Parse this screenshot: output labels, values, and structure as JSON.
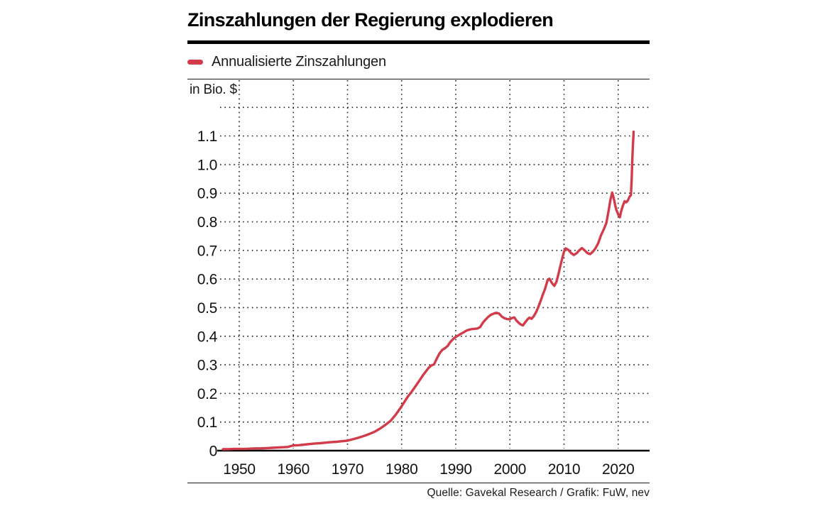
{
  "header": {
    "title": "Zinszahlungen der Regierung explodieren"
  },
  "legend": {
    "label": "Annualisierte Zinszahlungen",
    "color": "#d23b49"
  },
  "footer": {
    "source": "Quelle: Gavekal Research / Grafik: FuW, nev"
  },
  "chart_data": {
    "type": "line",
    "title": "Zinszahlungen der Regierung explodieren",
    "unit_label": "in Bio. $",
    "xlabel": "",
    "ylabel": "in Bio. $",
    "x_range": [
      1946.2,
      2025.8
    ],
    "y_range": [
      0,
      1.3
    ],
    "x_ticks": [
      1950,
      1960,
      1970,
      1980,
      1990,
      2000,
      2010,
      2020
    ],
    "y_tick_values": [
      0,
      0.1,
      0.2,
      0.3,
      0.4,
      0.5,
      0.6,
      0.7,
      0.8,
      0.9,
      1.0,
      1.1
    ],
    "y_tick_labels": [
      "0",
      "0.1",
      "0.2",
      "0.3",
      "0.4",
      "0.5",
      "0.6",
      "0.7",
      "0.8",
      "0.9",
      "1.0",
      "1.1"
    ],
    "x_gridlines": [
      1950,
      1960,
      1970,
      1980,
      1990,
      2000,
      2010,
      2020
    ],
    "y_gridlines": [
      0.1,
      0.2,
      0.3,
      0.4,
      0.5,
      0.6,
      0.7,
      0.8,
      0.9,
      1.0,
      1.1,
      1.2
    ],
    "grid": "dotted",
    "legend_position": "top-left",
    "line_color": "#d23b49",
    "source": "Quelle: Gavekal Research / Grafik: FuW, nev",
    "series": [
      {
        "name": "Annualisierte Zinszahlungen",
        "color": "#d23b49",
        "points": [
          [
            1947,
            0.005
          ],
          [
            1948,
            0.005
          ],
          [
            1949,
            0.006
          ],
          [
            1950,
            0.006
          ],
          [
            1951,
            0.006
          ],
          [
            1952,
            0.007
          ],
          [
            1953,
            0.008
          ],
          [
            1954,
            0.008
          ],
          [
            1955,
            0.009
          ],
          [
            1956,
            0.01
          ],
          [
            1957,
            0.011
          ],
          [
            1958,
            0.012
          ],
          [
            1959,
            0.013
          ],
          [
            1959.5,
            0.016
          ],
          [
            1960,
            0.018
          ],
          [
            1961,
            0.019
          ],
          [
            1962,
            0.021
          ],
          [
            1963,
            0.023
          ],
          [
            1964,
            0.025
          ],
          [
            1965,
            0.026
          ],
          [
            1966,
            0.028
          ],
          [
            1967,
            0.03
          ],
          [
            1968,
            0.031
          ],
          [
            1969,
            0.033
          ],
          [
            1970,
            0.035
          ],
          [
            1971,
            0.04
          ],
          [
            1972,
            0.045
          ],
          [
            1973,
            0.051
          ],
          [
            1974,
            0.058
          ],
          [
            1975,
            0.066
          ],
          [
            1976,
            0.077
          ],
          [
            1977,
            0.09
          ],
          [
            1978,
            0.105
          ],
          [
            1979,
            0.128
          ],
          [
            1980,
            0.155
          ],
          [
            1981,
            0.185
          ],
          [
            1982,
            0.21
          ],
          [
            1983,
            0.237
          ],
          [
            1984,
            0.265
          ],
          [
            1985,
            0.29
          ],
          [
            1985.5,
            0.298
          ],
          [
            1986,
            0.302
          ],
          [
            1986.5,
            0.322
          ],
          [
            1987,
            0.34
          ],
          [
            1987.5,
            0.352
          ],
          [
            1988,
            0.358
          ],
          [
            1988.5,
            0.366
          ],
          [
            1989,
            0.38
          ],
          [
            1989.5,
            0.39
          ],
          [
            1990,
            0.398
          ],
          [
            1990.5,
            0.403
          ],
          [
            1991,
            0.409
          ],
          [
            1991.5,
            0.414
          ],
          [
            1992,
            0.42
          ],
          [
            1992.5,
            0.423
          ],
          [
            1993,
            0.425
          ],
          [
            1993.5,
            0.426
          ],
          [
            1994,
            0.427
          ],
          [
            1994.5,
            0.432
          ],
          [
            1995,
            0.447
          ],
          [
            1995.5,
            0.458
          ],
          [
            1996,
            0.468
          ],
          [
            1996.5,
            0.475
          ],
          [
            1997,
            0.479
          ],
          [
            1997.5,
            0.482
          ],
          [
            1998,
            0.479
          ],
          [
            1998.5,
            0.469
          ],
          [
            1999,
            0.463
          ],
          [
            1999.5,
            0.46
          ],
          [
            2000,
            0.459
          ],
          [
            2000.3,
            0.463
          ],
          [
            2000.8,
            0.466
          ],
          [
            2001.2,
            0.455
          ],
          [
            2001.6,
            0.447
          ],
          [
            2002,
            0.441
          ],
          [
            2002.4,
            0.438
          ],
          [
            2002.8,
            0.448
          ],
          [
            2003.2,
            0.458
          ],
          [
            2003.6,
            0.465
          ],
          [
            2004,
            0.461
          ],
          [
            2004.4,
            0.47
          ],
          [
            2004.8,
            0.483
          ],
          [
            2005.2,
            0.5
          ],
          [
            2005.6,
            0.52
          ],
          [
            2006,
            0.541
          ],
          [
            2006.5,
            0.566
          ],
          [
            2007,
            0.598
          ],
          [
            2007.3,
            0.601
          ],
          [
            2007.8,
            0.585
          ],
          [
            2008.2,
            0.576
          ],
          [
            2008.6,
            0.59
          ],
          [
            2009,
            0.62
          ],
          [
            2009.5,
            0.66
          ],
          [
            2010,
            0.696
          ],
          [
            2010.3,
            0.707
          ],
          [
            2010.8,
            0.702
          ],
          [
            2011.3,
            0.691
          ],
          [
            2011.8,
            0.684
          ],
          [
            2012.3,
            0.69
          ],
          [
            2012.8,
            0.7
          ],
          [
            2013.3,
            0.708
          ],
          [
            2013.8,
            0.7
          ],
          [
            2014.3,
            0.691
          ],
          [
            2014.8,
            0.687
          ],
          [
            2015.3,
            0.695
          ],
          [
            2015.8,
            0.707
          ],
          [
            2016.3,
            0.725
          ],
          [
            2016.8,
            0.752
          ],
          [
            2017.3,
            0.772
          ],
          [
            2017.8,
            0.795
          ],
          [
            2018.2,
            0.835
          ],
          [
            2018.6,
            0.88
          ],
          [
            2018.9,
            0.902
          ],
          [
            2019.2,
            0.88
          ],
          [
            2019.6,
            0.845
          ],
          [
            2020,
            0.826
          ],
          [
            2020.3,
            0.816
          ],
          [
            2020.6,
            0.84
          ],
          [
            2020.9,
            0.858
          ],
          [
            2021.2,
            0.872
          ],
          [
            2021.5,
            0.868
          ],
          [
            2021.8,
            0.875
          ],
          [
            2022.1,
            0.888
          ],
          [
            2022.35,
            0.893
          ],
          [
            2022.5,
            0.95
          ],
          [
            2022.65,
            1.04
          ],
          [
            2022.85,
            1.115
          ]
        ]
      }
    ]
  }
}
